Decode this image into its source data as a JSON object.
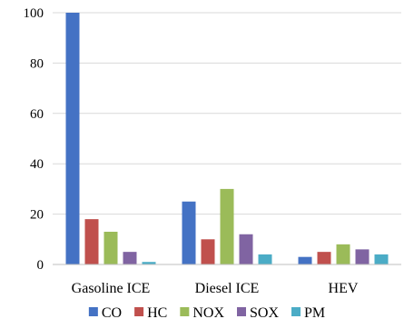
{
  "chart_data": {
    "type": "bar",
    "title": "",
    "xlabel": "",
    "ylabel": "",
    "categories": [
      "Gasoline ICE",
      "Diesel ICE",
      "HEV"
    ],
    "ylim": [
      0,
      100
    ],
    "yticks": [
      0,
      20,
      40,
      60,
      80,
      100
    ],
    "grid": true,
    "legend_position": "bottom",
    "series": [
      {
        "name": "CO",
        "color": "#4472C4",
        "values": [
          100,
          25,
          3
        ]
      },
      {
        "name": "HC",
        "color": "#C0504D",
        "values": [
          18,
          10,
          5
        ]
      },
      {
        "name": "NOX",
        "color": "#9BBB59",
        "values": [
          13,
          30,
          8
        ]
      },
      {
        "name": "SOX",
        "color": "#8064A2",
        "values": [
          5,
          12,
          6
        ]
      },
      {
        "name": "PM",
        "color": "#4BACC6",
        "values": [
          1,
          4,
          4
        ]
      }
    ]
  }
}
